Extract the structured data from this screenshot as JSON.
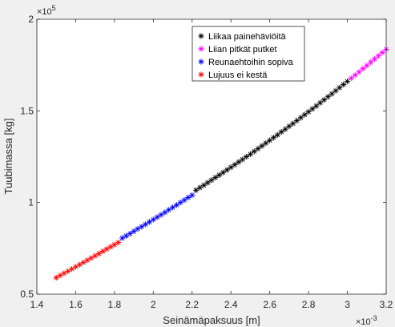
{
  "chart_data": {
    "type": "scatter",
    "xlabel": "Seinämäpaksuus [m]",
    "ylabel": "Tuubimassa [kg]",
    "x_exponent_label": "×10",
    "x_exponent_power": "-3",
    "y_exponent_label": "×10",
    "y_exponent_power": "5",
    "xlim": [
      1.4,
      3.2
    ],
    "ylim": [
      0.5,
      2.0
    ],
    "x_scale_factor": 0.001,
    "y_scale_factor": 100000,
    "xticks": [
      "1.4",
      "1.6",
      "1.8",
      "2",
      "2.2",
      "2.4",
      "2.6",
      "2.8",
      "3",
      "3.2"
    ],
    "yticks": [
      "0.5",
      "1",
      "1.5",
      "2"
    ],
    "grid": false,
    "legend_position": "top-right",
    "marker": "*",
    "series": [
      {
        "name": "Liikaa painehäviöitä",
        "color": "#000000",
        "x": [
          2.22,
          2.24,
          2.26,
          2.28,
          2.3,
          2.32,
          2.34,
          2.36,
          2.38,
          2.4,
          2.42,
          2.44,
          2.46,
          2.48,
          2.5,
          2.52,
          2.54,
          2.56,
          2.58,
          2.6,
          2.62,
          2.64,
          2.66,
          2.68,
          2.7,
          2.72,
          2.74,
          2.76,
          2.78,
          2.8,
          2.82,
          2.84,
          2.86,
          2.88,
          2.9,
          2.92,
          2.94,
          2.96,
          2.98,
          3.0
        ],
        "y": [
          1.067,
          1.081,
          1.094,
          1.108,
          1.122,
          1.136,
          1.15,
          1.164,
          1.178,
          1.192,
          1.206,
          1.221,
          1.235,
          1.25,
          1.264,
          1.279,
          1.294,
          1.309,
          1.324,
          1.339,
          1.354,
          1.369,
          1.385,
          1.4,
          1.416,
          1.431,
          1.447,
          1.463,
          1.479,
          1.495,
          1.511,
          1.527,
          1.544,
          1.56,
          1.577,
          1.593,
          1.61,
          1.627,
          1.644,
          1.661
        ]
      },
      {
        "name": "Liian pitkät putket",
        "color": "#ff00ff",
        "x": [
          3.02,
          3.04,
          3.06,
          3.08,
          3.1,
          3.12,
          3.14,
          3.16,
          3.18,
          3.2
        ],
        "y": [
          1.678,
          1.695,
          1.712,
          1.73,
          1.747,
          1.765,
          1.783,
          1.8,
          1.818,
          1.836
        ]
      },
      {
        "name": "Reunaehtoihin sopiva",
        "color": "#0000ff",
        "x": [
          1.84,
          1.86,
          1.88,
          1.9,
          1.92,
          1.94,
          1.96,
          1.98,
          2.0,
          2.02,
          2.04,
          2.06,
          2.08,
          2.1,
          2.12,
          2.14,
          2.16,
          2.18,
          2.2
        ],
        "y": [
          0.806,
          0.818,
          0.83,
          0.843,
          0.856,
          0.868,
          0.881,
          0.894,
          0.907,
          0.92,
          0.933,
          0.946,
          0.96,
          0.973,
          0.986,
          1.0,
          1.013,
          1.027,
          1.04
        ]
      },
      {
        "name": "Lujuus ei kestä",
        "color": "#ff0000",
        "x": [
          1.5,
          1.52,
          1.54,
          1.56,
          1.58,
          1.6,
          1.62,
          1.64,
          1.66,
          1.68,
          1.7,
          1.72,
          1.74,
          1.76,
          1.78,
          1.8,
          1.82
        ],
        "y": [
          0.59,
          0.602,
          0.614,
          0.625,
          0.637,
          0.649,
          0.661,
          0.673,
          0.685,
          0.697,
          0.709,
          0.721,
          0.734,
          0.746,
          0.758,
          0.77,
          0.782
        ]
      }
    ]
  }
}
